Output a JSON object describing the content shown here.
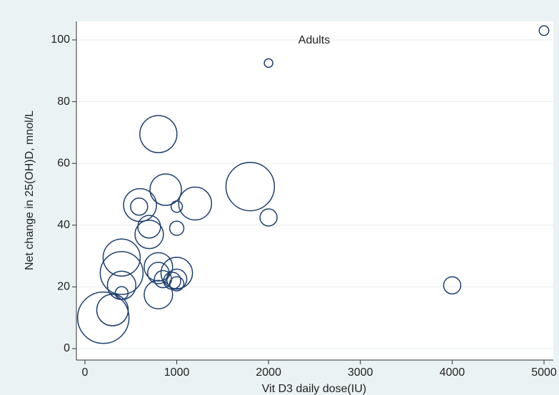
{
  "chart_data": {
    "type": "scatter",
    "annotation": "Adults",
    "x_label": "Vit D3 daily dose(IU)",
    "y_label": "Net change in 25(OH)D, mnol/L",
    "x": [
      5000,
      2000,
      800,
      1800,
      880,
      1200,
      600,
      590,
      1000,
      2000,
      700,
      700,
      1000,
      400,
      400,
      800,
      400,
      800,
      1000,
      850,
      1000,
      950,
      800,
      400,
      300,
      200,
      4000,
      1000
    ],
    "values": [
      103,
      92.5,
      69.5,
      52.5,
      51.5,
      47,
      46.5,
      46,
      46,
      42.5,
      39.5,
      37,
      39,
      29.5,
      24.5,
      26.5,
      20.5,
      24.5,
      24.5,
      22.5,
      22.5,
      22,
      17.5,
      18,
      12.5,
      10,
      20.5,
      21
    ],
    "sizes": [
      5,
      4,
      75,
      128,
      54,
      59,
      59,
      16,
      7,
      16,
      28,
      44,
      11,
      75,
      100,
      44,
      44,
      25,
      54,
      16,
      22,
      16,
      44,
      9,
      54,
      144,
      16,
      11
    ],
    "color": "#1f3f6e",
    "xlim": [
      -93,
      5101
    ],
    "ylim": [
      -3.7,
      106
    ],
    "xticks": [
      0,
      1000,
      2000,
      3000,
      4000,
      5000
    ],
    "yticks": [
      0,
      20,
      40,
      60,
      80,
      100
    ],
    "grid": true
  }
}
